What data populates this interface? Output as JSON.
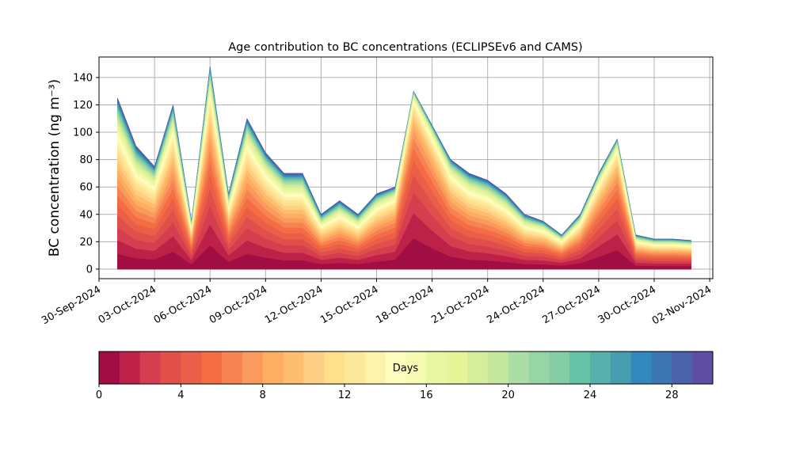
{
  "chart_data": {
    "type": "area",
    "title": "Age contribution to BC concentrations (ECLIPSEv6 and CAMS)",
    "ylabel": "BC concentration (ng m⁻³)",
    "xlabel": "",
    "xlim": [
      "2024-09-30T00:00",
      "2024-11-02T04:00"
    ],
    "ylim": [
      -7,
      155
    ],
    "grid": true,
    "x_tick_labels": [
      "30-Sep-2024",
      "03-Oct-2024",
      "06-Oct-2024",
      "09-Oct-2024",
      "12-Oct-2024",
      "15-Oct-2024",
      "18-Oct-2024",
      "21-Oct-2024",
      "24-Oct-2024",
      "27-Oct-2024",
      "30-Oct-2024",
      "02-Nov-2024"
    ],
    "y_ticks": [
      0,
      20,
      40,
      60,
      80,
      100,
      120,
      140
    ],
    "series_description": "Stacked contributions of BC by age in days (1 to 30)",
    "x": [
      "2024-10-01",
      "2024-10-02",
      "2024-10-03",
      "2024-10-04",
      "2024-10-05",
      "2024-10-06",
      "2024-10-07",
      "2024-10-08",
      "2024-10-09",
      "2024-10-10",
      "2024-10-11",
      "2024-10-12",
      "2024-10-13",
      "2024-10-14",
      "2024-10-15",
      "2024-10-16",
      "2024-10-17",
      "2024-10-18",
      "2024-10-19",
      "2024-10-20",
      "2024-10-21",
      "2024-10-22",
      "2024-10-23",
      "2024-10-24",
      "2024-10-25",
      "2024-10-26",
      "2024-10-27",
      "2024-10-28",
      "2024-10-29",
      "2024-10-30",
      "2024-10-31",
      "2024-11-01"
    ],
    "total": [
      125,
      90,
      75,
      120,
      35,
      148,
      55,
      110,
      85,
      70,
      70,
      40,
      50,
      40,
      55,
      60,
      130,
      105,
      80,
      70,
      65,
      55,
      40,
      35,
      25,
      40,
      70,
      95,
      25,
      22,
      22,
      21
    ],
    "young_fraction": [
      0.25,
      0.2,
      0.3,
      0.45,
      0.3,
      0.55,
      0.3,
      0.4,
      0.35,
      0.25,
      0.25,
      0.2,
      0.2,
      0.2,
      0.35,
      0.5,
      0.8,
      0.7,
      0.5,
      0.35,
      0.3,
      0.25,
      0.2,
      0.3,
      0.3,
      0.4,
      0.6,
      0.7,
      0.3,
      0.3,
      0.3,
      0.3
    ],
    "colorbar": {
      "label": "Days",
      "min": 0,
      "max": 30,
      "ticks": [
        0,
        4,
        8,
        12,
        16,
        20,
        24,
        28
      ],
      "colormap": "Spectral",
      "colors": [
        "#a00e44",
        "#bd2148",
        "#d53e4f",
        "#e14f4a",
        "#ea5f47",
        "#f46d43",
        "#f78353",
        "#fa9a5d",
        "#fdae61",
        "#fdbe70",
        "#fed085",
        "#fee08b",
        "#fee99a",
        "#fff3ab",
        "#fffebe",
        "#f6fbb1",
        "#eaf7a2",
        "#e6f598",
        "#d6ee9b",
        "#c5e89f",
        "#abdda4",
        "#98d5a4",
        "#84cca5",
        "#66c2a5",
        "#57b0ab",
        "#469db0",
        "#3288bd",
        "#3e75b3",
        "#4a62a9",
        "#5e4fa2"
      ]
    }
  }
}
